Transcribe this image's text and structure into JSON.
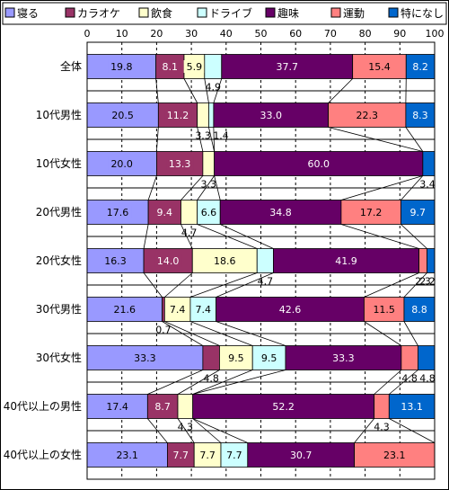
{
  "chart_data": {
    "type": "bar",
    "orientation": "horizontal",
    "stacked": true,
    "percent": true,
    "xlim": [
      0,
      100
    ],
    "x_ticks": [
      "0",
      "10",
      "20",
      "30",
      "40",
      "50",
      "60",
      "70",
      "80",
      "90",
      "100"
    ],
    "legend_placement": "top",
    "grid": "vertical dashed",
    "categories": [
      "全体",
      "10代男性",
      "10代女性",
      "20代男性",
      "20代女性",
      "30代男性",
      "30代女性",
      "40代以上の男性",
      "40代以上の女性"
    ],
    "series": [
      {
        "name": "寝る",
        "color": "#9999ff",
        "values": [
          19.8,
          20.5,
          20.0,
          17.6,
          16.3,
          21.6,
          33.3,
          17.4,
          23.1
        ],
        "labels": [
          "19.8",
          "20.5",
          "20.0",
          "17.6",
          "16.3",
          "21.6",
          "33.3",
          "17.4",
          "23.1"
        ]
      },
      {
        "name": "カラオケ",
        "color": "#993366",
        "values": [
          8.1,
          11.2,
          13.3,
          9.4,
          14.0,
          0.7,
          4.8,
          8.7,
          7.7
        ],
        "labels": [
          "8.1",
          "11.2",
          "13.3",
          "9.4",
          "14.0",
          "0.7",
          "4.8",
          "8.7",
          "7.7"
        ]
      },
      {
        "name": "飲食",
        "color": "#ffffcc",
        "values": [
          5.9,
          3.3,
          3.3,
          4.7,
          18.6,
          7.4,
          9.5,
          4.3,
          7.7
        ],
        "labels": [
          "5.9",
          "3.3",
          "3.3",
          "4.7",
          "18.6",
          "7.4",
          "9.5",
          "4.3",
          "7.7"
        ]
      },
      {
        "name": "ドライブ",
        "color": "#ccffff",
        "values": [
          4.9,
          1.4,
          0,
          6.6,
          4.7,
          7.4,
          9.5,
          0,
          7.7
        ],
        "labels": [
          "4.9",
          "1.4",
          "",
          "6.6",
          "4.7",
          "7.4",
          "9.5",
          "",
          "7.7"
        ]
      },
      {
        "name": "趣味",
        "color": "#660066",
        "values": [
          37.7,
          33.0,
          60.0,
          34.8,
          41.9,
          42.6,
          33.3,
          52.2,
          30.7
        ],
        "labels": [
          "37.7",
          "33.0",
          "60.0",
          "34.8",
          "41.9",
          "42.6",
          "33.3",
          "52.2",
          "30.7"
        ]
      },
      {
        "name": "運動",
        "color": "#ff8080",
        "values": [
          15.4,
          22.3,
          0,
          17.2,
          2.3,
          11.5,
          4.8,
          4.3,
          23.1
        ],
        "labels": [
          "15.4",
          "22.3",
          "",
          "17.2",
          "2.3",
          "11.5",
          "4.8",
          "4.3",
          "23.1"
        ]
      },
      {
        "name": "特になし",
        "color": "#0066cc",
        "values": [
          8.2,
          8.3,
          3.4,
          9.7,
          2.2,
          8.8,
          4.8,
          13.1,
          0
        ],
        "labels": [
          "8.2",
          "8.3",
          "3.4",
          "9.7",
          "2.2",
          "8.8",
          "4.8",
          "13.1",
          ""
        ]
      }
    ]
  }
}
